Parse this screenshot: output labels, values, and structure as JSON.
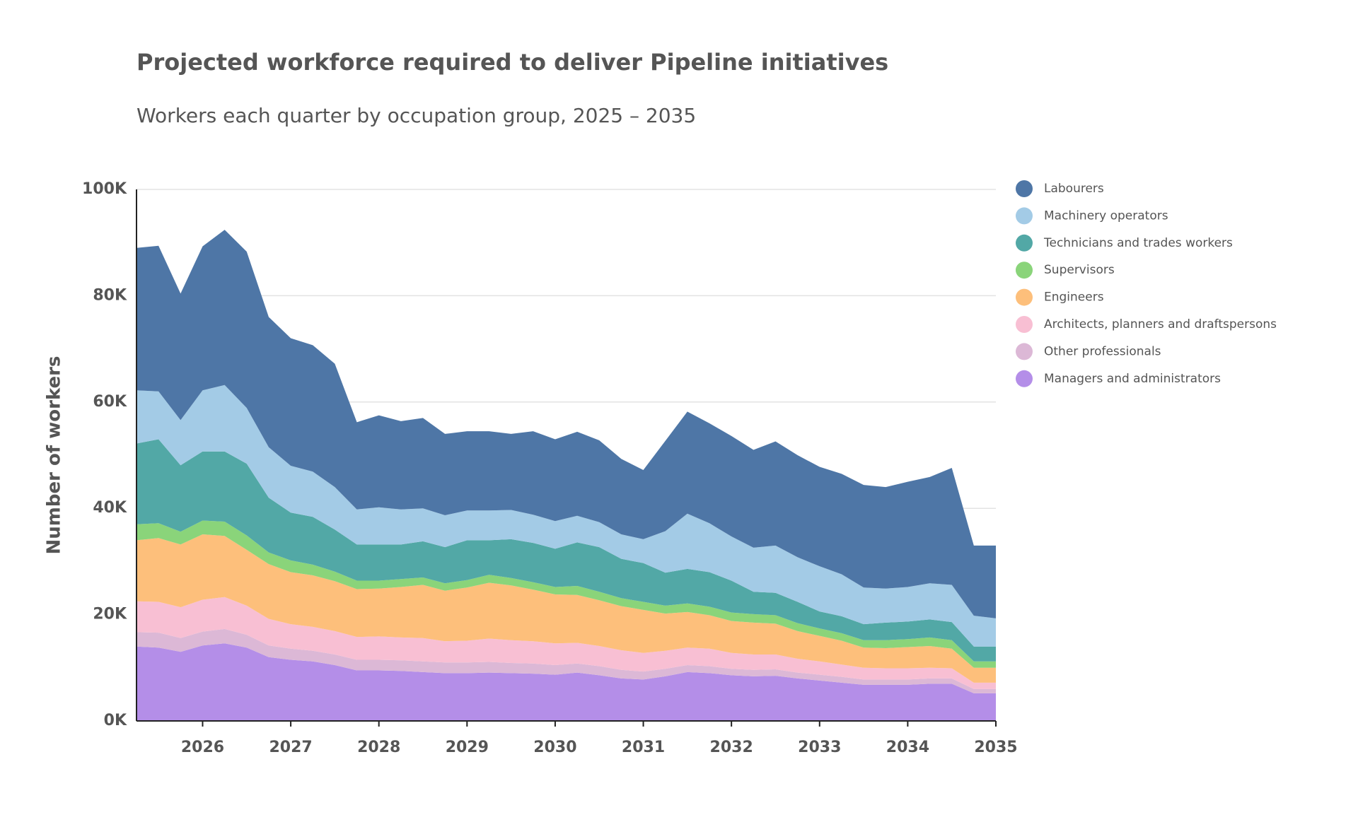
{
  "chart_data": {
    "type": "stacked-area",
    "title": "Projected workforce required to deliver Pipeline initiatives",
    "subtitle": "Workers each quarter by occupation group, 2025 – 2035",
    "y_label": "Number of workers",
    "x": [
      2025.25,
      2025.5,
      2025.75,
      2026,
      2026.25,
      2026.5,
      2026.75,
      2027,
      2027.25,
      2027.5,
      2027.75,
      2028,
      2028.25,
      2028.5,
      2028.75,
      2029,
      2029.25,
      2029.5,
      2029.75,
      2030,
      2030.25,
      2030.5,
      2030.75,
      2031,
      2031.25,
      2031.5,
      2031.75,
      2032,
      2032.25,
      2032.5,
      2032.75,
      2033,
      2033.25,
      2033.5,
      2033.75,
      2034,
      2034.25,
      2034.5,
      2034.75,
      2035
    ],
    "xlim": [
      2025.25,
      2035
    ],
    "xticks": [
      2026,
      2027,
      2028,
      2029,
      2030,
      2031,
      2032,
      2033,
      2034,
      2035
    ],
    "ylim": [
      0,
      100000
    ],
    "yticks": [
      {
        "value": 0,
        "label": "0K"
      },
      {
        "value": 20000,
        "label": "20K"
      },
      {
        "value": 40000,
        "label": "40K"
      },
      {
        "value": 60000,
        "label": "60K"
      },
      {
        "value": 80000,
        "label": "80K"
      },
      {
        "value": 100000,
        "label": "100K"
      }
    ],
    "grid": true,
    "legend": "right",
    "series": [
      {
        "name": "Managers and administrators",
        "color": "#b48ee8",
        "values": [
          14000,
          13800,
          13000,
          14200,
          14600,
          13800,
          12000,
          11500,
          11200,
          10500,
          9500,
          9500,
          9400,
          9200,
          9000,
          9000,
          9100,
          9000,
          8900,
          8700,
          9100,
          8600,
          8000,
          7800,
          8400,
          9200,
          9000,
          8600,
          8400,
          8500,
          8000,
          7600,
          7200,
          6800,
          6800,
          6800,
          7000,
          7000,
          5200,
          5200
        ]
      },
      {
        "name": "Other professionals",
        "color": "#dcb8d6",
        "values": [
          2700,
          2800,
          2600,
          2600,
          2700,
          2400,
          2200,
          2100,
          2000,
          2000,
          2000,
          2000,
          2000,
          2000,
          2000,
          2000,
          2000,
          1900,
          1900,
          1800,
          1700,
          1700,
          1600,
          1500,
          1400,
          1300,
          1300,
          1200,
          1200,
          1200,
          1100,
          1100,
          1100,
          1000,
          1000,
          1000,
          1000,
          1000,
          800,
          800
        ]
      },
      {
        "name": "Architects, planners and draftspersons",
        "color": "#f8bfd3",
        "values": [
          5800,
          5800,
          5800,
          6000,
          6000,
          5500,
          5000,
          4600,
          4500,
          4400,
          4300,
          4400,
          4300,
          4400,
          4000,
          4100,
          4400,
          4300,
          4200,
          4100,
          3900,
          3800,
          3700,
          3500,
          3400,
          3300,
          3300,
          3000,
          2900,
          2800,
          2600,
          2500,
          2300,
          2200,
          2100,
          2100,
          2000,
          1900,
          1200,
          1200
        ]
      },
      {
        "name": "Engineers",
        "color": "#fdbf7b",
        "values": [
          11500,
          12000,
          11800,
          12300,
          11500,
          10500,
          10300,
          9800,
          9700,
          9400,
          9000,
          9000,
          9500,
          10000,
          9500,
          10000,
          10500,
          10300,
          9700,
          9200,
          9000,
          8600,
          8300,
          8100,
          7000,
          6700,
          6300,
          6000,
          6000,
          5800,
          5200,
          4800,
          4500,
          3800,
          3800,
          4000,
          4100,
          3700,
          2800,
          2800
        ]
      },
      {
        "name": "Supervisors",
        "color": "#8ad47a",
        "values": [
          3000,
          2800,
          2400,
          2600,
          2700,
          2700,
          2200,
          2200,
          2000,
          1800,
          1600,
          1500,
          1500,
          1400,
          1400,
          1400,
          1500,
          1400,
          1400,
          1400,
          1700,
          1600,
          1500,
          1500,
          1500,
          1600,
          1600,
          1600,
          1600,
          1600,
          1500,
          1400,
          1400,
          1400,
          1500,
          1500,
          1600,
          1600,
          1200,
          1200
        ]
      },
      {
        "name": "Technicians and trades workers",
        "color": "#52a8a6",
        "values": [
          15200,
          15800,
          12500,
          13000,
          13200,
          13500,
          10300,
          9000,
          9000,
          7900,
          6800,
          6800,
          6500,
          6800,
          6800,
          7500,
          6500,
          7300,
          7400,
          7200,
          8200,
          8400,
          7400,
          7300,
          6200,
          6500,
          6500,
          6000,
          4200,
          4200,
          4000,
          3200,
          3200,
          3000,
          3300,
          3300,
          3400,
          3400,
          2800,
          2800
        ]
      },
      {
        "name": "Machinery operators",
        "color": "#a3cbe6",
        "values": [
          10000,
          9000,
          8500,
          11500,
          12500,
          10500,
          9500,
          8800,
          8500,
          8000,
          6600,
          7000,
          6600,
          6200,
          6000,
          5600,
          5600,
          5500,
          5300,
          5200,
          5000,
          4700,
          4600,
          4500,
          7800,
          10400,
          9200,
          8300,
          8300,
          8900,
          8400,
          8500,
          7900,
          6900,
          6400,
          6500,
          6800,
          7000,
          5800,
          5300
        ]
      },
      {
        "name": "Labourers",
        "color": "#4e76a6",
        "values": [
          26800,
          27400,
          23800,
          27100,
          29200,
          29400,
          24500,
          24000,
          23800,
          23200,
          16400,
          17300,
          16600,
          17000,
          15300,
          14900,
          14900,
          14300,
          15700,
          15400,
          15800,
          15400,
          14200,
          13000,
          17000,
          19200,
          18800,
          18900,
          18400,
          19600,
          19200,
          18700,
          18900,
          19300,
          19100,
          19800,
          20000,
          22000,
          13200,
          13700
        ]
      }
    ]
  }
}
